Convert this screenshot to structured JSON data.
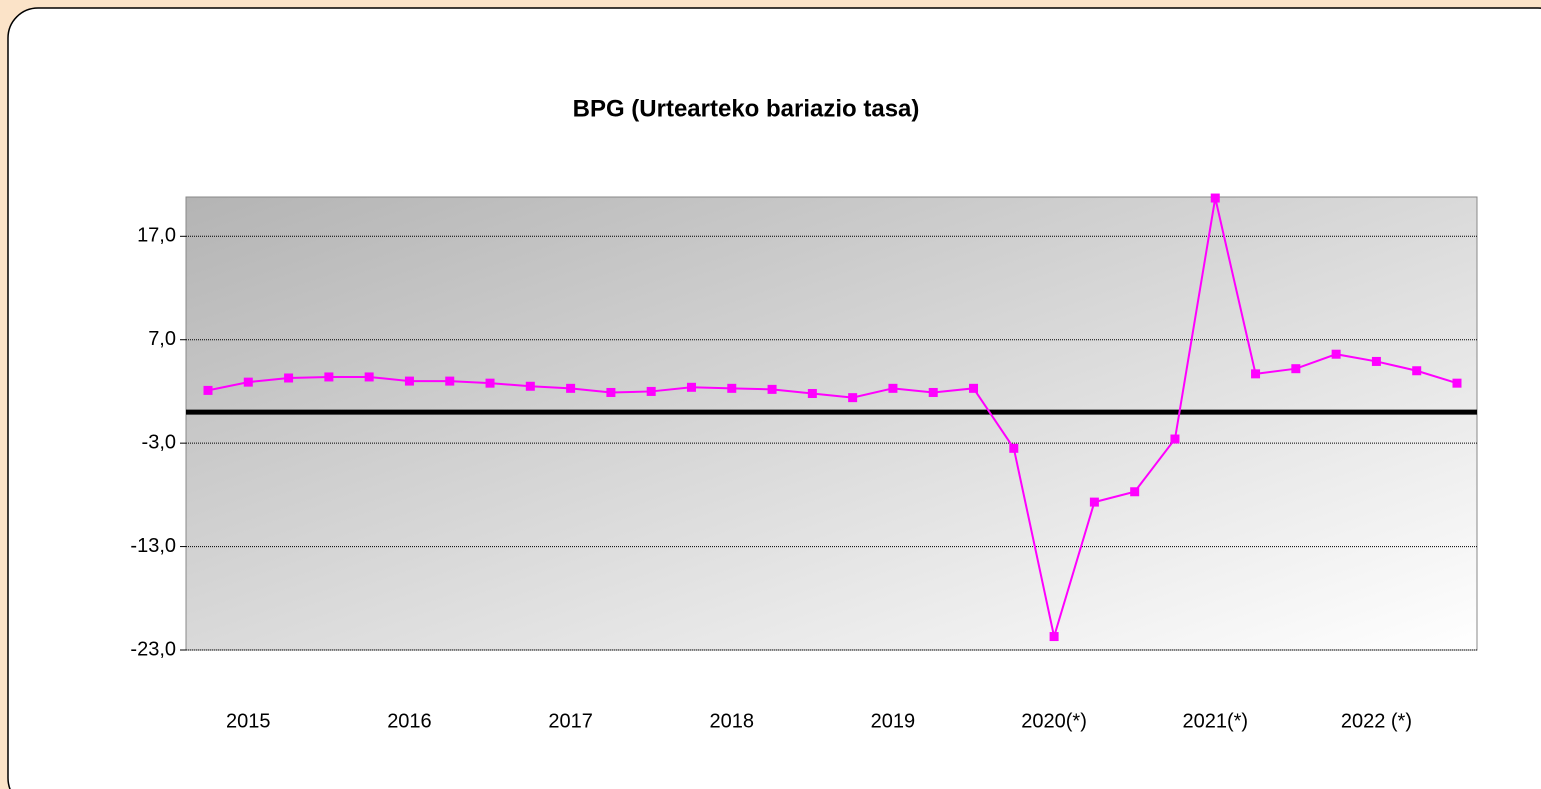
{
  "chart_data": {
    "type": "line",
    "title": "BPG (Urtearteko bariazio tasa)",
    "categories": [
      null,
      "2015",
      null,
      null,
      null,
      "2016",
      null,
      null,
      null,
      "2017",
      null,
      null,
      null,
      "2018",
      null,
      null,
      null,
      "2019",
      null,
      null,
      null,
      "2020(*)",
      null,
      null,
      null,
      "2021(*)",
      null,
      null,
      null,
      "2022 (*)",
      null,
      null
    ],
    "series": [
      {
        "color": "#ff00ff",
        "values": [
          2.1,
          2.9,
          3.3,
          3.4,
          3.4,
          3.0,
          3.0,
          2.8,
          2.5,
          2.3,
          1.9,
          2.0,
          2.4,
          2.3,
          2.2,
          1.8,
          1.4,
          2.3,
          1.9,
          2.3,
          -3.5,
          -21.7,
          -8.7,
          -7.7,
          -2.6,
          20.7,
          3.7,
          4.2,
          5.6,
          4.9,
          4.0,
          2.8
        ]
      }
    ],
    "ylim": [
      -23,
      20.8
    ],
    "yticks": [
      {
        "value": -23,
        "label": "-23,0"
      },
      {
        "value": -13,
        "label": "-13,0"
      },
      {
        "value": -3,
        "label": "-3,0"
      },
      {
        "value": 7,
        "label": "7,0"
      },
      {
        "value": 17,
        "label": "17,0"
      }
    ],
    "grid": true
  }
}
